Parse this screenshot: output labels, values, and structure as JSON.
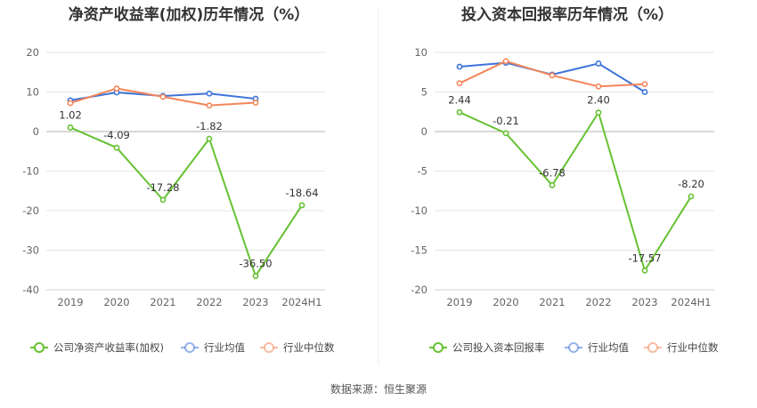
{
  "charts": [
    {
      "title": "净资产收益率(加权)历年情况（%）",
      "legend": [
        "公司净资产收益率(加权)",
        "行业均值",
        "行业中位数"
      ]
    },
    {
      "title": "投入资本回报率历年情况（%）",
      "legend": [
        "公司投入资本回报率",
        "行业均值",
        "行业中位数"
      ]
    }
  ],
  "source": "数据来源：恒生聚源",
  "colors": {
    "company": "#66c132",
    "industry_avg": "#3e73d8",
    "industry_median": "#f4865b"
  },
  "icons": [
    "legend-circle-line-icon"
  ],
  "chart_data": [
    {
      "type": "line",
      "title": "净资产收益率(加权)历年情况（%）",
      "categories": [
        "2019",
        "2020",
        "2021",
        "2022",
        "2023",
        "2024H1"
      ],
      "ylim": [
        -40,
        20
      ],
      "yticks": [
        20,
        10,
        0,
        -10,
        -20,
        -30,
        -40
      ],
      "grid": true,
      "legend_position": "bottom",
      "series": [
        {
          "name": "公司净资产收益率(加权)",
          "color": "#66c132",
          "values": [
            1.02,
            -4.09,
            -17.28,
            -1.82,
            -36.5,
            -18.64
          ],
          "labels": [
            "1.02",
            "-4.09",
            "-17.28",
            "-1.82",
            "-36.50",
            "-18.64"
          ]
        },
        {
          "name": "行业均值",
          "color": "#3e73d8",
          "values": [
            7.9,
            9.9,
            9.0,
            9.6,
            8.3,
            null
          ]
        },
        {
          "name": "行业中位数",
          "color": "#f4865b",
          "values": [
            7.2,
            10.9,
            8.8,
            6.6,
            7.3,
            null
          ]
        }
      ]
    },
    {
      "type": "line",
      "title": "投入资本回报率历年情况（%）",
      "categories": [
        "2019",
        "2020",
        "2021",
        "2022",
        "2023",
        "2024H1"
      ],
      "ylim": [
        -20,
        10
      ],
      "yticks": [
        10,
        5,
        0,
        -5,
        -10,
        -15,
        -20
      ],
      "grid": true,
      "legend_position": "bottom",
      "series": [
        {
          "name": "公司投入资本回报率",
          "color": "#66c132",
          "values": [
            2.44,
            -0.21,
            -6.78,
            2.4,
            -17.57,
            -8.2
          ],
          "labels": [
            "2.44",
            "-0.21",
            "-6.78",
            "2.40",
            "-17.57",
            "-8.20"
          ]
        },
        {
          "name": "行业均值",
          "color": "#3e73d8",
          "values": [
            8.2,
            8.7,
            7.2,
            8.6,
            5.0,
            null
          ]
        },
        {
          "name": "行业中位数",
          "color": "#f4865b",
          "values": [
            6.1,
            8.9,
            7.1,
            5.7,
            6.0,
            null
          ]
        }
      ]
    }
  ]
}
